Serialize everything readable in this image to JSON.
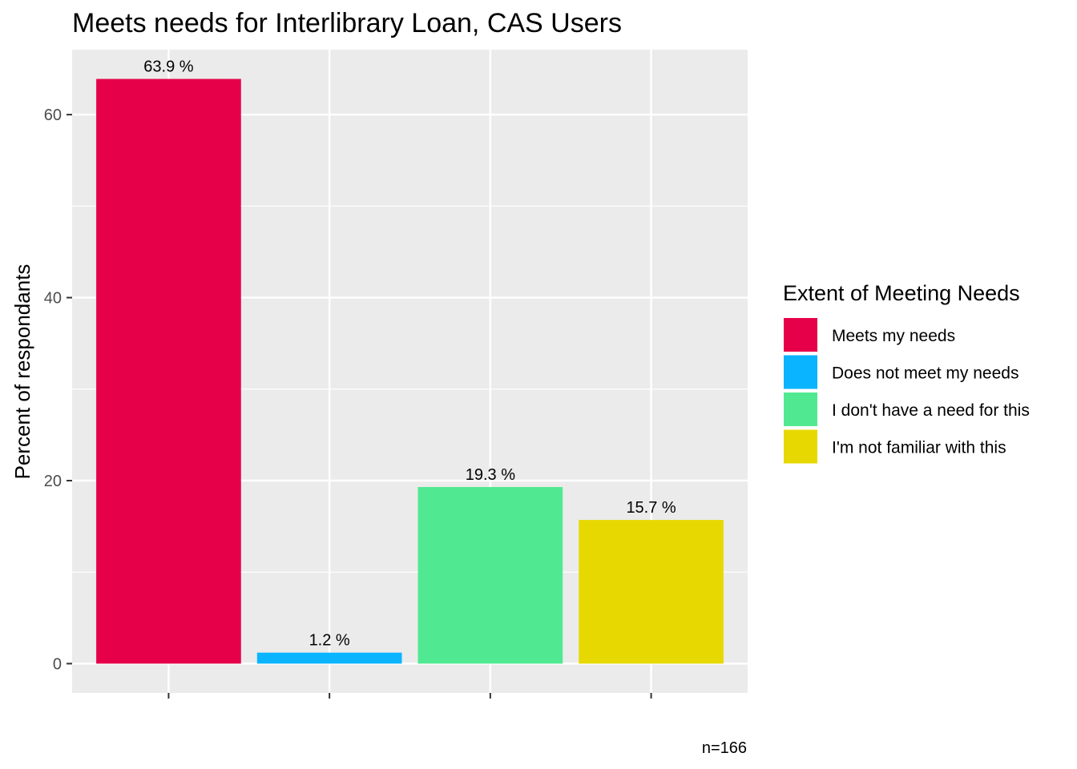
{
  "chart_data": {
    "type": "bar",
    "title": "Meets needs for Interlibrary Loan, CAS Users",
    "xlabel": "",
    "ylabel": "Percent of respondants",
    "categories": [
      "Meets my needs",
      "Does not meet my needs",
      "I don't have a need for this",
      "I'm not familiar with this"
    ],
    "values": [
      63.9,
      1.2,
      19.3,
      15.7
    ],
    "value_labels": [
      "63.9 %",
      "1.2 %",
      "19.3 %",
      "15.7 %"
    ],
    "colors": [
      "#E60049",
      "#0BB4FF",
      "#50E991",
      "#E6D800"
    ],
    "ylim": [
      -3.2,
      67.1
    ],
    "yticks": [
      0,
      20,
      40,
      60
    ],
    "ytick_labels": [
      "0",
      "20",
      "40",
      "60"
    ],
    "grid": true,
    "legend": {
      "title": "Extent of Meeting Needs",
      "position": "right",
      "entries": [
        "Meets my needs",
        "Does not meet my needs",
        "I don't have a need for this",
        "I'm not familiar with this"
      ]
    },
    "caption": "n=166"
  }
}
